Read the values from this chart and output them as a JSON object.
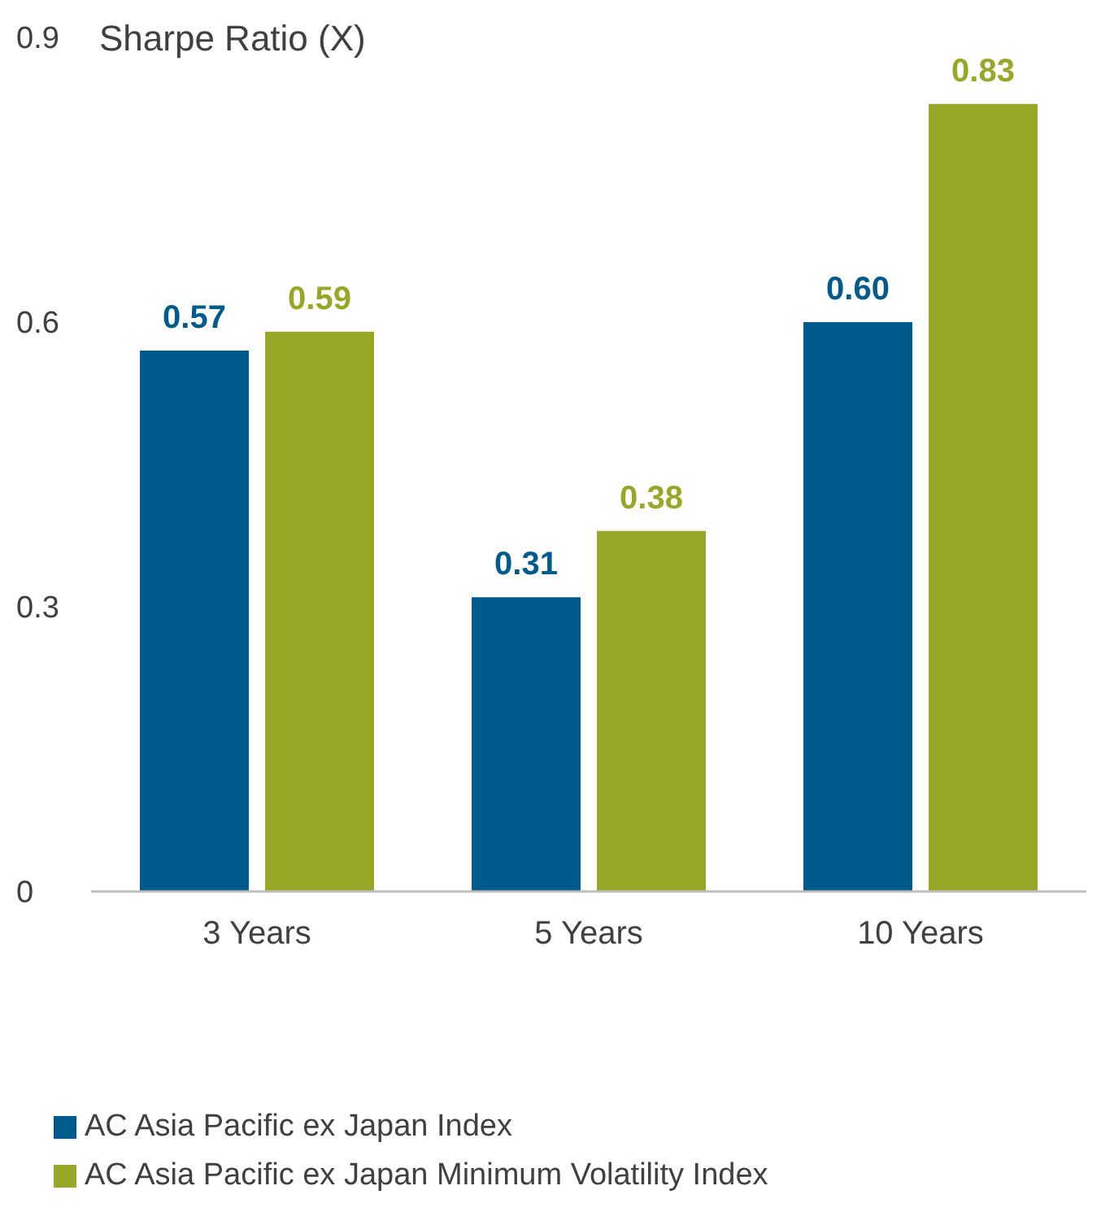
{
  "chart_data": {
    "type": "bar",
    "title": "Sharpe Ratio (X)",
    "categories": [
      "3 Years",
      "5 Years",
      "10 Years"
    ],
    "series": [
      {
        "name": "AC Asia Pacific ex Japan Index",
        "color": "#005a8b",
        "values": [
          0.57,
          0.31,
          0.6
        ],
        "value_labels": [
          "0.57",
          "0.31",
          "0.60"
        ]
      },
      {
        "name": "AC Asia Pacific ex Japan Minimum Volatility Index",
        "color": "#97a829",
        "values": [
          0.59,
          0.38,
          0.83
        ],
        "value_labels": [
          "0.59",
          "0.38",
          "0.83"
        ]
      }
    ],
    "ylim": [
      0,
      0.9
    ],
    "yticks": [
      0,
      0.3,
      0.6,
      0.9
    ],
    "grid": false,
    "legend": "bottom left"
  }
}
